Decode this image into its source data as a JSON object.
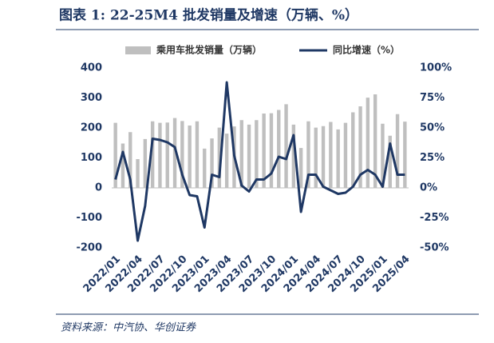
{
  "title": "图表 1:  22-25M4 批发销量及增速（万辆、%）",
  "source": "资料来源：中汽协、华创证券",
  "chart_data": {
    "type": "bar-line",
    "categories": [
      "2022/01",
      null,
      null,
      "2022/04",
      null,
      null,
      "2022/07",
      null,
      null,
      "2022/10",
      null,
      null,
      "2023/01",
      null,
      null,
      "2023/04",
      null,
      null,
      "2023/07",
      null,
      null,
      "2023/10",
      null,
      null,
      "2024/01",
      null,
      null,
      "2024/04",
      null,
      null,
      "2024/07",
      null,
      null,
      "2024/10",
      null,
      null,
      "2025/01",
      null,
      null,
      "2025/04"
    ],
    "series": [
      {
        "name": "乘用车批发销量（万辆）",
        "type": "bar",
        "color": "#bfbfbf",
        "values": [
          217,
          148,
          186,
          96,
          163,
          222,
          217,
          218,
          233,
          223,
          208,
          222,
          131,
          165,
          201,
          181,
          205,
          226,
          211,
          226,
          248,
          249,
          260,
          279,
          211,
          133,
          222,
          201,
          206,
          220,
          195,
          217,
          252,
          272,
          301,
          312,
          214,
          174,
          246,
          221
        ]
      },
      {
        "name": "同比增速（%）",
        "type": "line",
        "axis": "y2",
        "color": "#1f3864",
        "values": [
          7,
          30,
          7,
          -44,
          -15,
          41,
          40,
          38,
          34,
          11,
          -6,
          -7,
          -33,
          11,
          9,
          88,
          27,
          2,
          -3,
          7,
          7,
          12,
          26,
          24,
          44,
          -20,
          11,
          11,
          1,
          -2,
          -5,
          -4,
          1,
          11,
          15,
          11,
          1,
          37,
          11,
          11
        ]
      }
    ],
    "ylim": [
      -200,
      400
    ],
    "yticks": [
      -200,
      -100,
      0,
      100,
      200,
      300,
      400
    ],
    "y2lim": [
      -50,
      100
    ],
    "y2ticks": [
      {
        "value": -50,
        "label": "-50%"
      },
      {
        "value": -25,
        "label": "-25%"
      },
      {
        "value": 0,
        "label": "0%"
      },
      {
        "value": 25,
        "label": "25%"
      },
      {
        "value": 50,
        "label": "50%"
      },
      {
        "value": 75,
        "label": "75%"
      },
      {
        "value": 100,
        "label": "100%"
      }
    ],
    "grid": false
  }
}
